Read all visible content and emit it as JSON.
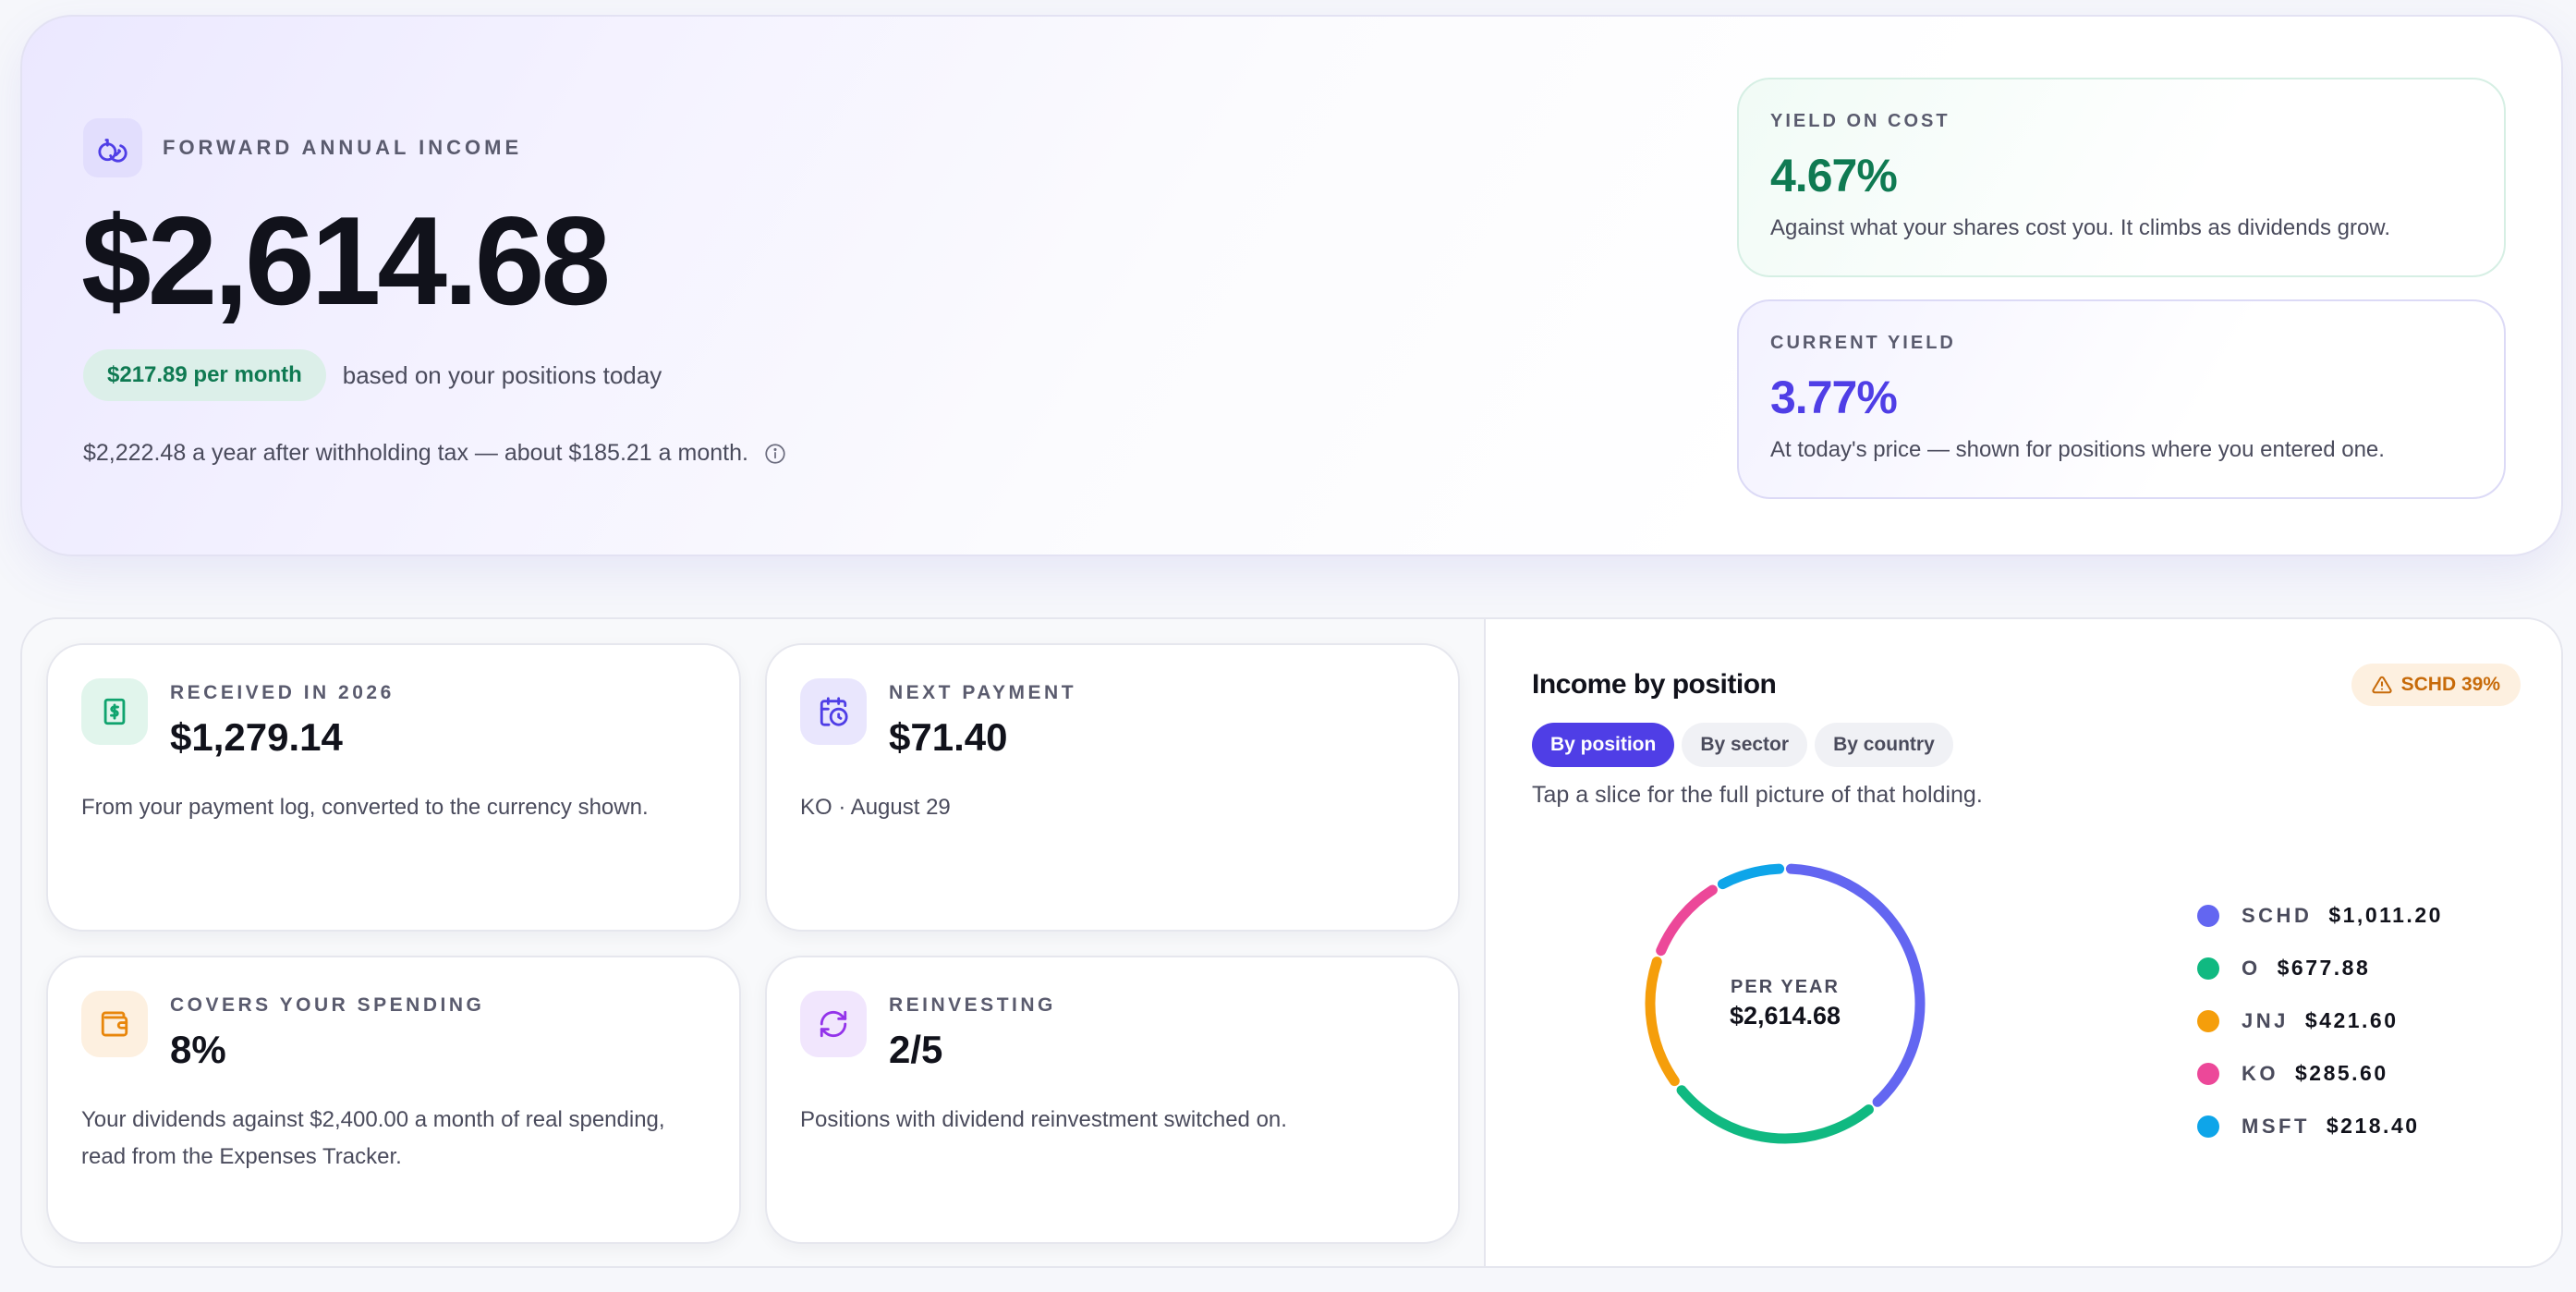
{
  "hero": {
    "eyebrow": "FORWARD ANNUAL INCOME",
    "amount": "$2,614.68",
    "monthly_pill": "$217.89 per month",
    "pill_caption": "based on your positions today",
    "after_tax": "$2,222.48 a year after withholding tax — about $185.21 a month.",
    "icon": "coins-icon"
  },
  "yield_on_cost": {
    "label": "YIELD ON COST",
    "value": "4.67%",
    "description": "Against what your shares cost you. It climbs as dividends grow.",
    "color": "#0f7a52"
  },
  "current_yield": {
    "label": "CURRENT YIELD",
    "value": "3.77%",
    "description": "At today's price — shown for positions where you entered one.",
    "color": "#4f3ee6"
  },
  "stats": {
    "received": {
      "label": "RECEIVED IN 2026",
      "value": "$1,279.14",
      "description": "From your payment log, converted to the currency shown.",
      "icon": "dollar-receipt-icon"
    },
    "next_payment": {
      "label": "NEXT PAYMENT",
      "value": "$71.40",
      "description": "KO · August 29",
      "icon": "calendar-clock-icon"
    },
    "spending": {
      "label": "COVERS YOUR SPENDING",
      "value": "8%",
      "description": "Your dividends against $2,400.00 a month of real spending, read from the Expenses Tracker.",
      "icon": "wallet-icon"
    },
    "reinvesting": {
      "label": "REINVESTING",
      "value": "2/5",
      "description": "Positions with dividend reinvestment switched on.",
      "icon": "refresh-icon"
    }
  },
  "income_panel": {
    "title": "Income by position",
    "concentration_badge": "SCHD 39%",
    "tabs": [
      "By position",
      "By sector",
      "By country"
    ],
    "active_tab": "By position",
    "hint": "Tap a slice for the full picture of that holding.",
    "center_label": "PER YEAR",
    "center_value": "$2,614.68",
    "legend": [
      {
        "ticker": "SCHD",
        "value": "$1,011.20",
        "color": "#6366f1"
      },
      {
        "ticker": "O",
        "value": "$677.88",
        "color": "#10b981"
      },
      {
        "ticker": "JNJ",
        "value": "$421.60",
        "color": "#f59e0b"
      },
      {
        "ticker": "KO",
        "value": "$285.60",
        "color": "#ec4899"
      },
      {
        "ticker": "MSFT",
        "value": "$218.40",
        "color": "#0ea5e9"
      }
    ]
  },
  "chart_data": {
    "type": "pie",
    "title": "Income by position",
    "categories": [
      "SCHD",
      "O",
      "JNJ",
      "KO",
      "MSFT"
    ],
    "values": [
      1011.2,
      677.88,
      421.6,
      285.6,
      218.4
    ],
    "colors": [
      "#6366f1",
      "#10b981",
      "#f59e0b",
      "#ec4899",
      "#0ea5e9"
    ]
  }
}
